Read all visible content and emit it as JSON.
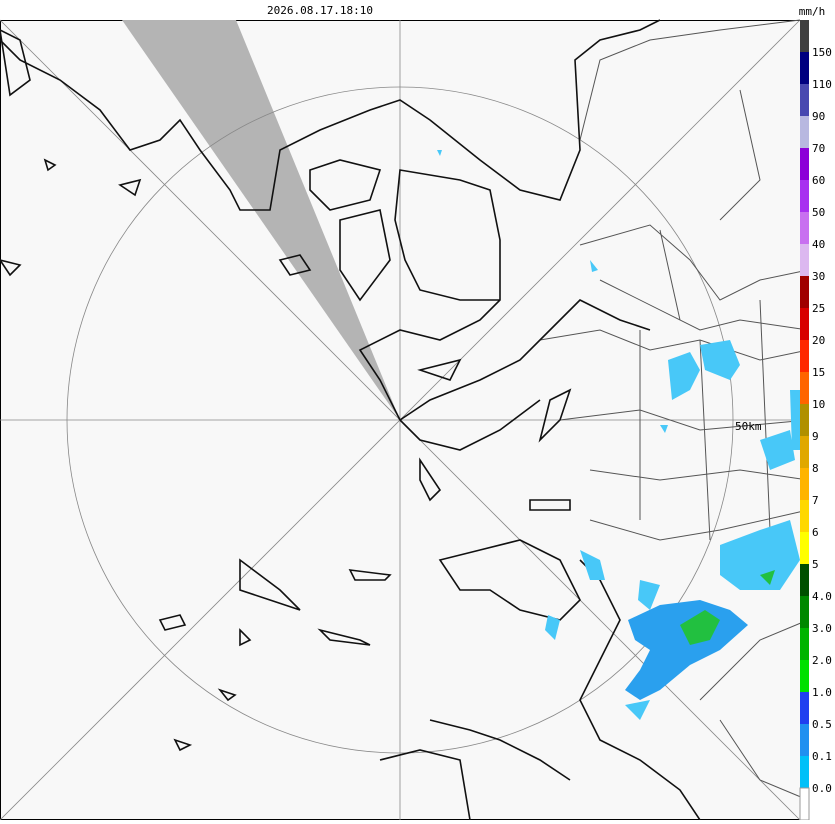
{
  "timestamp": "2026.08.17.18:10",
  "unit": "mm/h",
  "range_label": "50km",
  "legend": [
    {
      "label": "150",
      "color": "#404040"
    },
    {
      "label": "110",
      "color": "#000080"
    },
    {
      "label": "90",
      "color": "#4848b0"
    },
    {
      "label": "70",
      "color": "#b8b8e0"
    },
    {
      "label": "60",
      "color": "#8c00d8"
    },
    {
      "label": "50",
      "color": "#a830f0"
    },
    {
      "label": "40",
      "color": "#c870f0"
    },
    {
      "label": "30",
      "color": "#dcb8f0"
    },
    {
      "label": "25",
      "color": "#a00000"
    },
    {
      "label": "20",
      "color": "#d80000"
    },
    {
      "label": "15",
      "color": "#ff2800"
    },
    {
      "label": "10",
      "color": "#ff6400"
    },
    {
      "label": "9",
      "color": "#b09000"
    },
    {
      "label": "8",
      "color": "#e0a800"
    },
    {
      "label": "7",
      "color": "#ffb400"
    },
    {
      "label": "6",
      "color": "#ffd800"
    },
    {
      "label": "5",
      "color": "#ffff00"
    },
    {
      "label": "4.0",
      "color": "#005000"
    },
    {
      "label": "3.0",
      "color": "#008800"
    },
    {
      "label": "2.0",
      "color": "#00b400"
    },
    {
      "label": "1.0",
      "color": "#00e000"
    },
    {
      "label": "0.5",
      "color": "#2040f0"
    },
    {
      "label": "0.1",
      "color": "#2090f0"
    },
    {
      "label": "0.0",
      "color": "#00c0f8"
    }
  ],
  "legend_base_color": "#ffffff"
}
